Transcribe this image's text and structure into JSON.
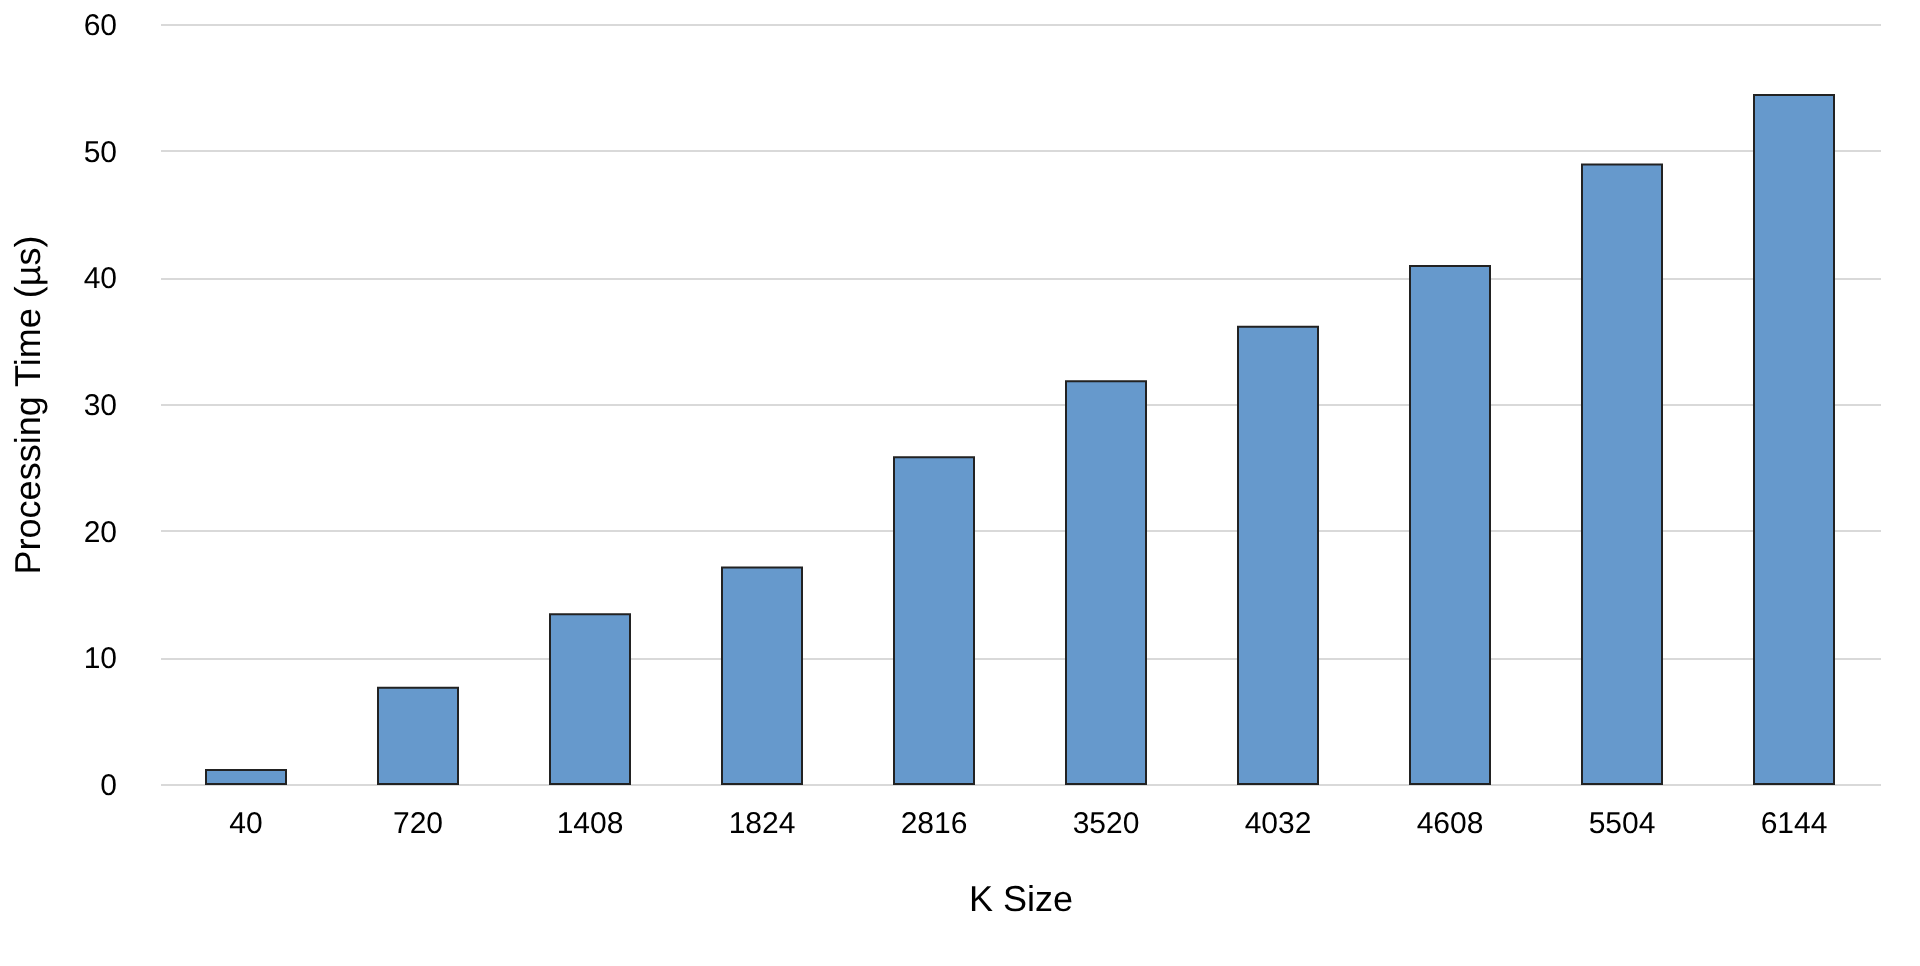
{
  "chart_data": {
    "type": "bar",
    "xlabel": "K Size",
    "ylabel": "Processing Time (µs)",
    "categories": [
      "40",
      "720",
      "1408",
      "1824",
      "2816",
      "3520",
      "4032",
      "4608",
      "5504",
      "6144"
    ],
    "values": [
      1.1,
      7.6,
      13.4,
      17.1,
      25.8,
      31.8,
      36.1,
      40.9,
      48.9,
      54.4
    ],
    "color": "#6699cc",
    "ylim": [
      0,
      60
    ],
    "yticks": [
      0,
      10,
      20,
      30,
      40,
      50,
      60
    ],
    "grid": "y"
  }
}
